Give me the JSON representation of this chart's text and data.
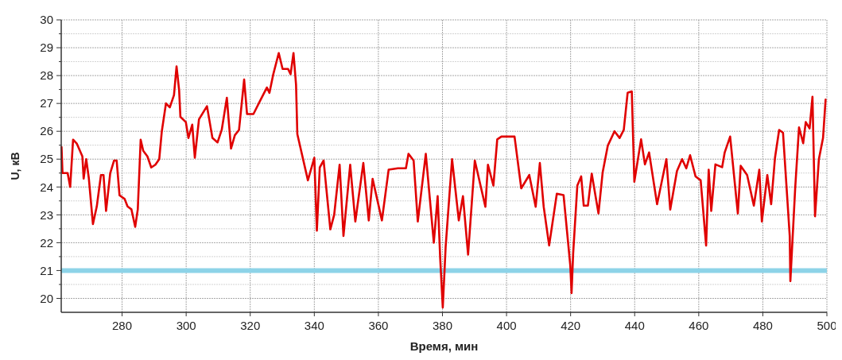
{
  "chart_data": {
    "type": "line",
    "xlabel": "Время, мин",
    "ylabel": "U, кВ",
    "xlim": [
      261,
      500
    ],
    "ylim": [
      19.5,
      30
    ],
    "xticks": [
      280,
      300,
      320,
      340,
      360,
      380,
      400,
      420,
      440,
      460,
      480,
      500
    ],
    "yticks": [
      20,
      {
        "value": 20.5,
        "label": null
      },
      21,
      {
        "value": 21.5,
        "label": null
      },
      22,
      {
        "value": 22.5,
        "label": null
      },
      23,
      {
        "value": 23.5,
        "label": null
      },
      24,
      {
        "value": 24.5,
        "label": null
      },
      25,
      {
        "value": 25.5,
        "label": null
      },
      26,
      {
        "value": 26.5,
        "label": null
      },
      27,
      {
        "value": 27.5,
        "label": null
      },
      28,
      {
        "value": 28.5,
        "label": null
      },
      29,
      {
        "value": 29.5,
        "label": null
      },
      30
    ],
    "grid": true,
    "line_style": "solid",
    "marker": "none",
    "ref_lines": [
      {
        "axis": "y",
        "value": 21,
        "color": "#8dd3e8"
      }
    ],
    "series": [
      {
        "color": "#e00000",
        "x": [
          261.1,
          261.4,
          263,
          263.8,
          264.7,
          265.9,
          267.6,
          268,
          268.8,
          269.6,
          270.9,
          272.1,
          273.4,
          274.2,
          275,
          276.3,
          277.5,
          278.3,
          279.2,
          280.8,
          281.7,
          282.9,
          284.1,
          284.9,
          285.8,
          286.6,
          287.9,
          289.1,
          290.4,
          291.6,
          292.4,
          293.7,
          294.9,
          296.2,
          297,
          297.8,
          298.2,
          299.9,
          300.7,
          301.9,
          302.7,
          304,
          306.5,
          308.2,
          309.8,
          311.1,
          312.7,
          314,
          315.2,
          316.5,
          318.1,
          319,
          321,
          323.1,
          325.2,
          326,
          327.2,
          328.9,
          330.1,
          331.8,
          332.6,
          333.5,
          334.3,
          334.7,
          338,
          340,
          340.8,
          341.7,
          342.9,
          345,
          346.2,
          347.9,
          349.1,
          351.2,
          352.8,
          355.3,
          357,
          358.2,
          361.1,
          363.2,
          366.1,
          368.6,
          369.4,
          371,
          372.3,
          374.8,
          377.3,
          378.5,
          379.3,
          380.1,
          381,
          383,
          385.1,
          386.4,
          388,
          390.1,
          393.4,
          394.2,
          395.9,
          397.1,
          398.4,
          402.5,
          404.6,
          407.1,
          409.1,
          410.4,
          411.6,
          413.3,
          415.7,
          417.8,
          419.9,
          420.3,
          420.8,
          422.1,
          423.3,
          424.1,
          425.4,
          426.6,
          428.7,
          430,
          431.6,
          433.7,
          435.3,
          436.6,
          437.8,
          439.1,
          439.9,
          442,
          443.2,
          444.5,
          447,
          449.9,
          451.1,
          453.2,
          454.8,
          456.1,
          457.3,
          459,
          460.6,
          462.3,
          463.1,
          463.9,
          465.2,
          467.3,
          468.1,
          469.8,
          472.2,
          473.1,
          475.1,
          477.2,
          478.9,
          479.7,
          481.4,
          482.6,
          483.8,
          485.1,
          486.3,
          488.4,
          488.6,
          490.1,
          491.3,
          492.6,
          493.4,
          494.6,
          495.5,
          496.3,
          497.5,
          498.8,
          499.6
        ],
        "values": [
          25.43,
          24.5,
          24.5,
          24.0,
          25.7,
          25.55,
          25.1,
          24.3,
          25.0,
          24.33,
          22.67,
          23.3,
          24.43,
          24.43,
          23.14,
          24.5,
          24.95,
          24.95,
          23.7,
          23.57,
          23.3,
          23.2,
          22.57,
          23.2,
          25.7,
          25.3,
          25.1,
          24.7,
          24.8,
          25.0,
          26.0,
          27.0,
          26.86,
          27.3,
          28.33,
          27.48,
          26.52,
          26.33,
          25.76,
          26.24,
          25.05,
          26.43,
          26.9,
          25.76,
          25.6,
          26.05,
          27.2,
          25.38,
          25.86,
          26.05,
          27.86,
          26.62,
          26.62,
          27.1,
          27.57,
          27.38,
          28.05,
          28.81,
          28.24,
          28.24,
          28.05,
          28.81,
          27.67,
          25.9,
          24.24,
          25.05,
          22.43,
          24.7,
          24.95,
          22.48,
          23.0,
          24.8,
          22.24,
          24.8,
          22.76,
          24.86,
          22.8,
          24.29,
          22.8,
          24.62,
          24.67,
          24.67,
          25.19,
          24.95,
          22.76,
          25.19,
          22.0,
          23.67,
          21.43,
          19.67,
          21.86,
          25.0,
          22.8,
          23.67,
          21.57,
          24.95,
          23.29,
          24.8,
          24.05,
          25.71,
          25.81,
          25.81,
          23.95,
          24.43,
          23.29,
          24.86,
          23.29,
          21.9,
          23.76,
          23.71,
          21.19,
          20.19,
          21.62,
          24.05,
          24.38,
          23.33,
          23.33,
          24.48,
          23.05,
          24.52,
          25.48,
          26.0,
          25.76,
          26.05,
          27.38,
          27.43,
          24.19,
          25.71,
          24.81,
          25.24,
          23.38,
          25.0,
          23.19,
          24.57,
          25.0,
          24.67,
          25.14,
          24.38,
          24.24,
          21.9,
          24.62,
          23.14,
          24.81,
          24.71,
          25.24,
          25.81,
          23.05,
          24.76,
          24.43,
          23.33,
          24.62,
          22.76,
          24.43,
          23.38,
          25.05,
          26.05,
          25.95,
          22.24,
          20.62,
          23.95,
          26.14,
          25.57,
          26.33,
          26.1,
          27.24,
          22.95,
          25.0,
          25.76,
          27.14
        ]
      }
    ]
  }
}
